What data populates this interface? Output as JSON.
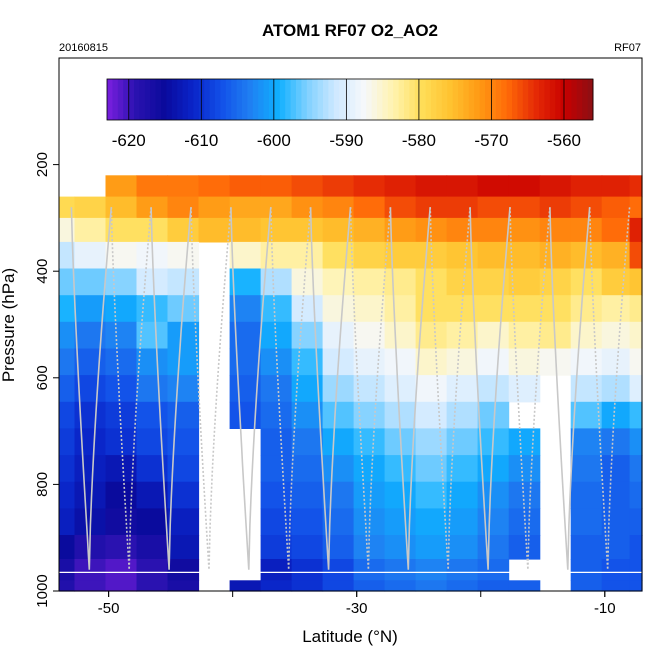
{
  "header": {
    "title": "ATOM1 RF07 O2_AO2",
    "date": "20160815",
    "flight": "RF07"
  },
  "chart_data": {
    "type": "heatmap",
    "title": "ATOM1 RF07 O2_AO2",
    "xlabel": "Latitude (°N)",
    "ylabel": "Pressure (hPa)",
    "xlim": [
      -54,
      -7
    ],
    "ylim": [
      1000,
      0
    ],
    "x_ticks": [
      -50,
      -30,
      -10
    ],
    "y_ticks": [
      200,
      400,
      600,
      800,
      1000
    ],
    "grid": false,
    "legend_position": "top",
    "colorbar": {
      "min": -623,
      "max": -556,
      "ticks": [
        -620,
        -610,
        -600,
        -590,
        -580,
        -570,
        -560
      ],
      "colors": [
        "#7b1fe0",
        "#2a12b0",
        "#0a0a9c",
        "#0a24c8",
        "#1250e8",
        "#1f7ff2",
        "#0fb0ff",
        "#7fd0ff",
        "#cfe9ff",
        "#f6f8fb",
        "#fff3b0",
        "#ffde59",
        "#ffc330",
        "#ff9a14",
        "#ff6a08",
        "#e52a05",
        "#c80000",
        "#8b0f14"
      ]
    },
    "lat_columns": [
      -54,
      -51.5,
      -49,
      -46.5,
      -44,
      -41.5,
      -39,
      -36.5,
      -34,
      -31.5,
      -29,
      -26.5,
      -24,
      -21.5,
      -19,
      -16.5,
      -14,
      -11.5,
      -9,
      -7
    ],
    "pressure_levels": [
      240,
      280,
      320,
      370,
      420,
      470,
      520,
      570,
      620,
      670,
      720,
      770,
      820,
      870,
      920,
      960,
      1000
    ],
    "values": [
      [
        null,
        null,
        -572,
        -569,
        -569,
        -568,
        -567,
        -567,
        -566,
        -565,
        -564,
        -563,
        -562,
        -562,
        -561,
        -561,
        -562,
        -563,
        -563,
        -564
      ],
      [
        -579,
        -578,
        -575,
        -572,
        -570,
        -572,
        -573,
        -573,
        -571,
        -570,
        -568,
        -566,
        -565,
        -565,
        -566,
        -566,
        -565,
        -566,
        -567,
        -568
      ],
      [
        -586,
        -583,
        -580,
        -580,
        -577,
        -575,
        -575,
        -576,
        -576,
        -575,
        -574,
        -572,
        -571,
        -570,
        -570,
        -571,
        -570,
        -570,
        -568,
        -563
      ],
      [
        -592,
        -589,
        -587,
        -588,
        -587,
        null,
        -585,
        -583,
        -583,
        -580,
        -578,
        -577,
        -577,
        -576,
        -575,
        -575,
        -574,
        -575,
        -574,
        -566
      ],
      [
        -596,
        -596,
        -595,
        -591,
        -592,
        null,
        -599,
        -593,
        -586,
        -584,
        -583,
        -582,
        -580,
        -578,
        -578,
        -577,
        -578,
        -580,
        -577,
        -576
      ],
      [
        -599,
        -601,
        -600,
        -598,
        -596,
        null,
        -603,
        -598,
        -591,
        -586,
        -585,
        -583,
        -580,
        -580,
        -580,
        -580,
        -580,
        -582,
        -583,
        -582
      ],
      [
        -602,
        -604,
        -603,
        -597,
        -601,
        null,
        -605,
        -600,
        -595,
        -589,
        -587,
        -585,
        -582,
        -583,
        -585,
        -583,
        -582,
        -585,
        -586,
        -585
      ],
      [
        -604,
        -606,
        -605,
        -602,
        -601,
        null,
        -605,
        -602,
        -598,
        -591,
        -589,
        -588,
        -585,
        -586,
        -588,
        -586,
        -587,
        -588,
        -589,
        -587
      ],
      [
        -606,
        -608,
        -607,
        -604,
        -603,
        null,
        -606,
        -604,
        -600,
        -594,
        -592,
        -590,
        -588,
        -590,
        -592,
        -590,
        null,
        -592,
        -593,
        -590
      ],
      [
        -608,
        -610,
        -609,
        -607,
        -606,
        null,
        -607,
        -605,
        -602,
        -597,
        -595,
        -593,
        -591,
        -593,
        -596,
        null,
        null,
        -597,
        -600,
        -598
      ],
      [
        -609,
        -611,
        -610,
        -608,
        -607,
        null,
        null,
        -606,
        -604,
        -600,
        -598,
        -596,
        -594,
        -596,
        -598,
        -600,
        null,
        -603,
        -604,
        -602
      ],
      [
        -610,
        -612,
        -613,
        -610,
        -608,
        null,
        null,
        -606,
        -605,
        -602,
        -600,
        -598,
        -596,
        -598,
        -600,
        -602,
        null,
        -604,
        -606,
        -604
      ],
      [
        -611,
        -613,
        -615,
        -613,
        -610,
        null,
        null,
        -607,
        -606,
        -604,
        -601,
        -600,
        -598,
        -600,
        -602,
        -604,
        null,
        -605,
        -606,
        -605
      ],
      [
        -612,
        -614,
        -616,
        -615,
        -612,
        null,
        null,
        -608,
        -607,
        -605,
        -602,
        -601,
        -600,
        -601,
        -603,
        -605,
        null,
        -605,
        -606,
        -606
      ],
      [
        -615,
        -618,
        -619,
        -617,
        -613,
        null,
        null,
        -609,
        -608,
        -606,
        -603,
        -602,
        -601,
        -602,
        -604,
        -606,
        null,
        -606,
        -606,
        -607
      ],
      [
        -617,
        -620,
        -621,
        -619,
        -616,
        null,
        null,
        -612,
        -610,
        -608,
        -605,
        -604,
        -603,
        -604,
        -605,
        null,
        null,
        -606,
        -607,
        -607
      ],
      [
        -618,
        -620,
        -621,
        -619,
        -617,
        null,
        -613,
        -611,
        -610,
        -608,
        -606,
        -605,
        -604,
        -605,
        -606,
        -606,
        null,
        -606,
        -607,
        -607
      ]
    ],
    "profiles_count": 14
  }
}
